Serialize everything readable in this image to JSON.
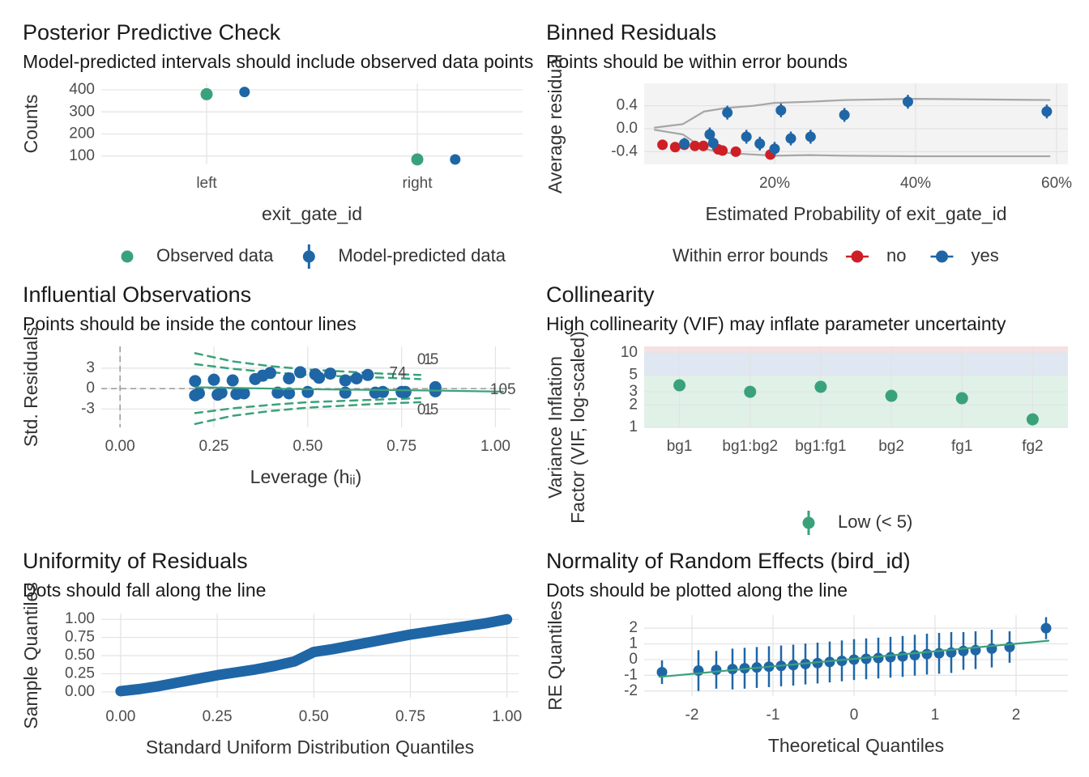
{
  "chart_data": [
    {
      "type": "dot_interval",
      "title": "Posterior Predictive Check",
      "subtitle": "Model-predicted intervals should include observed data points",
      "x_label": "exit_gate_id",
      "y_label": "Counts",
      "categories": [
        "left",
        "right"
      ],
      "series": [
        {
          "name": "Observed data",
          "color": "#3aa27a",
          "values": [
            380,
            85
          ]
        },
        {
          "name": "Model-predicted data",
          "color": "#1f66a6",
          "values": [
            390,
            85
          ],
          "errors": [
            6,
            6
          ]
        }
      ],
      "ylim": [
        63,
        429
      ],
      "yticks": [
        100,
        200,
        300,
        400
      ],
      "grid": true
    },
    {
      "type": "errorbar",
      "title": "Binned Residuals",
      "subtitle": "Points should be within error bounds",
      "x_label": "Estimated Probability of exit_gate_id",
      "y_label": "Average residual",
      "legend_title": "Within error bounds",
      "panel_color": "#f3f3f3",
      "series": [
        {
          "mark": "line",
          "color": "#a6a6a6",
          "x": [
            0.03,
            0.07,
            0.1,
            0.13,
            0.17,
            0.2,
            0.25,
            0.3,
            0.4,
            0.59
          ],
          "values": [
            0.02,
            0.08,
            0.3,
            0.36,
            0.4,
            0.45,
            0.47,
            0.5,
            0.52,
            0.5
          ]
        },
        {
          "mark": "line",
          "color": "#a6a6a6",
          "x": [
            0.03,
            0.07,
            0.1,
            0.13,
            0.17,
            0.2,
            0.25,
            0.3,
            0.4,
            0.59
          ],
          "values": [
            -0.02,
            -0.1,
            -0.35,
            -0.42,
            -0.45,
            -0.47,
            -0.46,
            -0.47,
            -0.48,
            -0.48
          ]
        },
        {
          "name": "no",
          "color": "#cd2026",
          "x": [
            0.041,
            0.059,
            0.072,
            0.087,
            0.099,
            0.12,
            0.126,
            0.145,
            0.194
          ],
          "values": [
            -0.28,
            -0.32,
            -0.28,
            -0.3,
            -0.3,
            -0.36,
            -0.38,
            -0.4,
            -0.45
          ],
          "errors": [
            0.05,
            0.05,
            0.05,
            0.05,
            0.05,
            0.05,
            0.05,
            0.05,
            0.05
          ]
        },
        {
          "name": "yes",
          "color": "#1f66a6",
          "x": [
            0.072,
            0.108,
            0.113,
            0.133,
            0.16,
            0.179,
            0.2,
            0.209,
            0.223,
            0.251,
            0.299,
            0.389,
            0.586
          ],
          "values": [
            -0.26,
            -0.1,
            -0.25,
            0.28,
            -0.14,
            -0.26,
            -0.35,
            0.32,
            -0.17,
            -0.14,
            0.24,
            0.47,
            0.3
          ],
          "errors": [
            0.1,
            0.12,
            0.12,
            0.12,
            0.12,
            0.12,
            0.12,
            0.12,
            0.12,
            0.12,
            0.12,
            0.12,
            0.12
          ]
        }
      ],
      "xlim": [
        0.015,
        0.616
      ],
      "xticks": [
        {
          "value": 0.2,
          "label": "20%"
        },
        {
          "value": 0.4,
          "label": "40%"
        },
        {
          "value": 0.6,
          "label": "60%"
        }
      ],
      "ylim": [
        -0.62,
        0.79
      ],
      "yticks": [
        {
          "value": 0.4,
          "label": "0.4"
        },
        {
          "value": 0,
          "label": "0.0"
        },
        {
          "value": -0.4,
          "label": "-0.4"
        }
      ],
      "grid": true
    },
    {
      "type": "scatter",
      "title": "Influential Observations",
      "subtitle": "Points should be inside the contour lines",
      "x_label": "Leverage (hᵢᵢ)",
      "y_label": "Std. Residuals",
      "hline": 0,
      "vline": 0,
      "series": [
        {
          "mark": "dashed",
          "color": "#3aa27a",
          "x": [
            0.2,
            0.3,
            0.4,
            0.5,
            0.6,
            0.7,
            0.8
          ],
          "values": [
            5.2,
            4.0,
            3.3,
            2.8,
            2.5,
            2.2,
            2.0
          ]
        },
        {
          "mark": "dashed",
          "color": "#3aa27a",
          "x": [
            0.2,
            0.3,
            0.4,
            0.5,
            0.6,
            0.7,
            0.8
          ],
          "values": [
            3.6,
            2.9,
            2.4,
            2.0,
            1.8,
            1.6,
            1.4
          ]
        },
        {
          "mark": "dashed",
          "color": "#3aa27a",
          "x": [
            0.2,
            0.3,
            0.4,
            0.5,
            0.6,
            0.7,
            0.8
          ],
          "values": [
            -3.6,
            -2.9,
            -2.4,
            -2.0,
            -1.8,
            -1.6,
            -1.4
          ]
        },
        {
          "mark": "dashed",
          "color": "#3aa27a",
          "x": [
            0.2,
            0.3,
            0.4,
            0.5,
            0.6,
            0.7,
            0.8
          ],
          "values": [
            -5.2,
            -4.0,
            -3.3,
            -2.8,
            -2.5,
            -2.2,
            -2.0
          ]
        },
        {
          "color": "#1f66a6",
          "x": [
            0.2,
            0.21,
            0.25,
            0.27,
            0.3,
            0.33,
            0.36,
            0.4,
            0.42,
            0.45,
            0.48,
            0.5,
            0.53,
            0.56,
            0.6,
            0.63,
            0.66,
            0.7,
            0.75,
            0.84,
            0.2,
            0.26,
            0.31,
            0.38,
            0.45,
            0.52,
            0.6,
            0.68,
            0.76,
            0.84
          ],
          "values": [
            1.1,
            -0.7,
            1.3,
            -0.6,
            1.2,
            -0.7,
            1.4,
            2.3,
            -0.6,
            1.5,
            2.4,
            -0.5,
            1.6,
            2.2,
            -0.6,
            1.5,
            2.0,
            -0.5,
            -0.5,
            -0.4,
            -1.0,
            -0.9,
            -0.8,
            1.9,
            -0.7,
            2.1,
            1.2,
            -0.6,
            -0.5,
            0.2
          ]
        },
        {
          "mark": "line",
          "color": "#3aa27a",
          "x": [
            0.2,
            0.5,
            0.85,
            1.02
          ],
          "values": [
            0.2,
            -0.1,
            -0.3,
            -0.45
          ]
        }
      ],
      "annotations": [
        {
          "text": "1",
          "x": 0.82,
          "y": 4.2,
          "color": "#3aa27a"
        },
        {
          "text": "0.5",
          "x": 0.82,
          "y": 4.2,
          "color": "#3aa27a"
        },
        {
          "text": "1",
          "x": 0.82,
          "y": -3.2,
          "color": "#3aa27a"
        },
        {
          "text": "0.5",
          "x": 0.82,
          "y": -3.2,
          "color": "#3aa27a"
        },
        {
          "text": "74",
          "x": 0.74,
          "y": 2.2,
          "color": "#cd2026"
        },
        {
          "text": "105",
          "x": 1.02,
          "y": -0.2,
          "color": "#cd2026"
        }
      ],
      "xlim": [
        -0.05,
        1.04
      ],
      "xticks": [
        {
          "value": 0,
          "label": "0.00"
        },
        {
          "value": 0.25,
          "label": "0.25"
        },
        {
          "value": 0.5,
          "label": "0.50"
        },
        {
          "value": 0.75,
          "label": "0.75"
        },
        {
          "value": 1,
          "label": "1.00"
        }
      ],
      "ylim": [
        -5.7,
        6.2
      ],
      "yticks": [
        3,
        0,
        -3
      ],
      "grid": true
    },
    {
      "type": "dot",
      "title": "Collinearity",
      "subtitle": "High collinearity (VIF) may inflate parameter uncertainty",
      "y_label": [
        "Variance Inflation",
        "Factor (VIF, log-scaled)"
      ],
      "log": true,
      "categories": [
        "bg1",
        "bg1:bg2",
        "bg1:fg1",
        "bg2",
        "fg1",
        "fg2"
      ],
      "series": [
        {
          "name": "Low (< 5)",
          "color": "#3aa27a",
          "values": [
            3.67,
            3.0,
            3.5,
            2.65,
            2.46,
            1.28
          ]
        }
      ],
      "bands": [
        {
          "from": 1,
          "to": 5,
          "color": "#e0f1e8"
        },
        {
          "from": 5,
          "to": 10,
          "color": "#dfe7f2"
        },
        {
          "from": 10,
          "to": 12.2,
          "color": "#f6e1e2"
        }
      ],
      "ylim": [
        1,
        12.2
      ],
      "yticks": [
        1,
        2,
        3,
        5,
        10
      ],
      "grid": true
    },
    {
      "type": "qq",
      "title": "Uniformity of Residuals",
      "subtitle": "Dots should fall along the line",
      "x_label": "Standard Uniform Distribution Quantiles",
      "y_label": "Sample Quantiles",
      "series": [
        {
          "mark": "thick",
          "color": "#1f66a6",
          "x": [
            0,
            0.05,
            0.1,
            0.15,
            0.2,
            0.25,
            0.3,
            0.35,
            0.4,
            0.45,
            0.5,
            0.55,
            0.6,
            0.65,
            0.7,
            0.75,
            0.8,
            0.85,
            0.9,
            0.95,
            1
          ],
          "values": [
            0.01,
            0.04,
            0.08,
            0.13,
            0.18,
            0.23,
            0.27,
            0.31,
            0.36,
            0.42,
            0.55,
            0.59,
            0.64,
            0.69,
            0.74,
            0.79,
            0.83,
            0.87,
            0.91,
            0.95,
            1.0
          ]
        }
      ],
      "xlim": [
        -0.05,
        1.03
      ],
      "xticks": [
        {
          "value": 0,
          "label": "0.00"
        },
        {
          "value": 0.25,
          "label": "0.25"
        },
        {
          "value": 0.5,
          "label": "0.50"
        },
        {
          "value": 0.75,
          "label": "0.75"
        },
        {
          "value": 1,
          "label": "1.00"
        }
      ],
      "ylim": [
        -0.08,
        1.08
      ],
      "yticks": [
        {
          "value": 1,
          "label": "1.00"
        },
        {
          "value": 0.75,
          "label": "0.75"
        },
        {
          "value": 0.5,
          "label": "0.50"
        },
        {
          "value": 0.25,
          "label": "0.25"
        },
        {
          "value": 0,
          "label": "0.00"
        }
      ],
      "grid": true
    },
    {
      "type": "errorbar",
      "title": "Normality of Random Effects (bird_id)",
      "subtitle": "Dots should be plotted along the line",
      "x_label": "Theoretical Quantiles",
      "y_label": "RE Quantiles",
      "series": [
        {
          "color": "#1f66a6",
          "x": [
            -2.37,
            -1.92,
            -1.7,
            -1.5,
            -1.35,
            -1.2,
            -1.05,
            -0.9,
            -0.75,
            -0.6,
            -0.45,
            -0.3,
            -0.15,
            0,
            0.15,
            0.3,
            0.45,
            0.6,
            0.75,
            0.9,
            1.05,
            1.2,
            1.35,
            1.5,
            1.7,
            1.92,
            2.37
          ],
          "values": [
            -0.8,
            -0.7,
            -0.65,
            -0.6,
            -0.55,
            -0.5,
            -0.45,
            -0.4,
            -0.35,
            -0.28,
            -0.22,
            -0.15,
            -0.08,
            0,
            0.05,
            0.1,
            0.15,
            0.2,
            0.28,
            0.35,
            0.4,
            0.45,
            0.55,
            0.6,
            0.7,
            0.8,
            2.0
          ],
          "errors": [
            0.75,
            1.3,
            1.2,
            1.3,
            1.3,
            1.3,
            1.3,
            1.3,
            1.3,
            1.3,
            1.3,
            1.3,
            1.3,
            1.3,
            1.3,
            1.3,
            1.3,
            1.3,
            1.3,
            1.3,
            1.3,
            1.3,
            1.2,
            1.2,
            1.2,
            1.0,
            0.7
          ]
        },
        {
          "mark": "line",
          "color": "#3aa27a",
          "x": [
            -2.4,
            2.4
          ],
          "values": [
            -1.1,
            1.2
          ]
        }
      ],
      "xlim": [
        -2.59,
        2.64
      ],
      "xticks": [
        -2,
        -1,
        0,
        1,
        2
      ],
      "ylim": [
        -2.32,
        2.83
      ],
      "yticks": [
        2,
        1,
        0,
        -1,
        -2
      ],
      "grid": true
    }
  ]
}
